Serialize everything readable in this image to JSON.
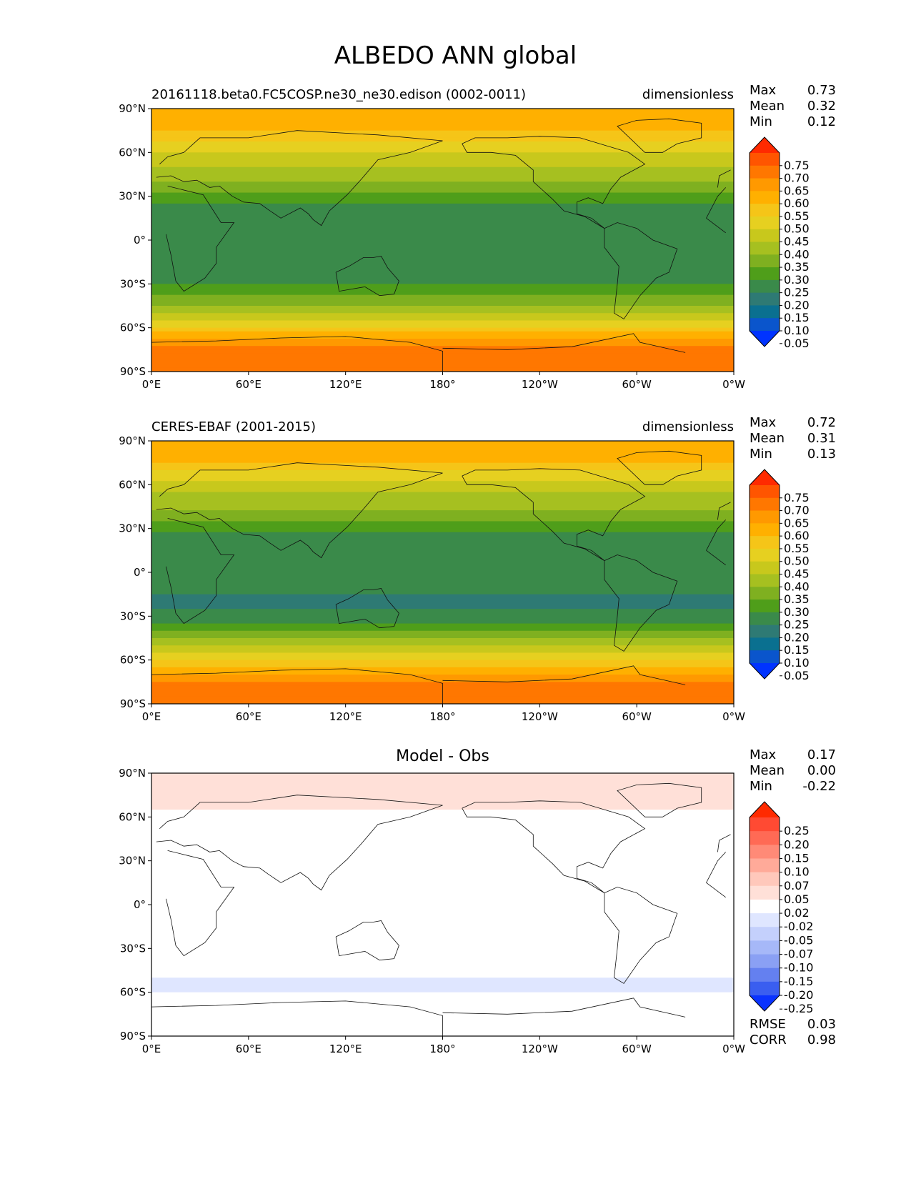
{
  "figure": {
    "title": "ALBEDO ANN global"
  },
  "panels": [
    {
      "left_label": "20161118.beta0.FC5COSP.ne30_ne30.edison (0002-0011)",
      "right_label": "dimensionless",
      "center_label": "",
      "stats": [
        {
          "label": "Max",
          "value": "0.73"
        },
        {
          "label": "Mean",
          "value": "0.32"
        },
        {
          "label": "Min",
          "value": "0.12"
        }
      ]
    },
    {
      "left_label": "CERES-EBAF (2001-2015)",
      "right_label": "dimensionless",
      "center_label": "",
      "stats": [
        {
          "label": "Max",
          "value": "0.72"
        },
        {
          "label": "Mean",
          "value": "0.31"
        },
        {
          "label": "Min",
          "value": "0.13"
        }
      ]
    },
    {
      "left_label": "",
      "right_label": "",
      "center_label": "Model - Obs",
      "stats": [
        {
          "label": "Max",
          "value": "0.17"
        },
        {
          "label": "Mean",
          "value": "0.00"
        },
        {
          "label": "Min",
          "value": "-0.22"
        }
      ],
      "extra_stats": [
        {
          "label": "RMSE",
          "value": "0.03"
        },
        {
          "label": "CORR",
          "value": "0.98"
        }
      ]
    }
  ],
  "chart_data": [
    {
      "type": "heatmap",
      "title": "20161118.beta0.FC5COSP.ne30_ne30.edison (0002-0011)",
      "units": "dimensionless",
      "x_ticks": [
        "0°E",
        "60°E",
        "120°E",
        "180°",
        "120°W",
        "60°W",
        "0°W"
      ],
      "y_ticks": [
        "90°N",
        "60°N",
        "30°N",
        "0°",
        "30°S",
        "60°S",
        "90°S"
      ],
      "xlim": [
        0,
        360
      ],
      "ylim": [
        -90,
        90
      ],
      "colorbar_levels": [
        "0.75",
        "0.70",
        "0.65",
        "0.60",
        "0.55",
        "0.50",
        "0.45",
        "0.40",
        "0.35",
        "0.30",
        "0.25",
        "0.20",
        "0.15",
        "0.10",
        "0.05"
      ],
      "colorbar_colors": [
        "#ff2a00",
        "#ff5500",
        "#ff7700",
        "#ff9900",
        "#ffb000",
        "#f5c518",
        "#e6d020",
        "#c8c81c",
        "#a6c020",
        "#7fb020",
        "#4f9e1a",
        "#3a8a4a",
        "#2e7a74",
        "#0a7090",
        "#0a55cc",
        "#0033ff"
      ],
      "zonal_profile": {
        "lat": [
          90,
          75,
          65,
          55,
          45,
          35,
          20,
          5,
          -5,
          -20,
          -35,
          -45,
          -55,
          -65,
          -75,
          -90
        ],
        "value": [
          0.6,
          0.56,
          0.47,
          0.42,
          0.38,
          0.32,
          0.22,
          0.22,
          0.25,
          0.2,
          0.27,
          0.36,
          0.45,
          0.58,
          0.66,
          0.7
        ]
      }
    },
    {
      "type": "heatmap",
      "title": "CERES-EBAF (2001-2015)",
      "units": "dimensionless",
      "x_ticks": [
        "0°E",
        "60°E",
        "120°E",
        "180°",
        "120°W",
        "60°W",
        "0°W"
      ],
      "y_ticks": [
        "90°N",
        "60°N",
        "30°N",
        "0°",
        "30°S",
        "60°S",
        "90°S"
      ],
      "xlim": [
        0,
        360
      ],
      "ylim": [
        -90,
        90
      ],
      "colorbar_levels": [
        "0.75",
        "0.70",
        "0.65",
        "0.60",
        "0.55",
        "0.50",
        "0.45",
        "0.40",
        "0.35",
        "0.30",
        "0.25",
        "0.20",
        "0.15",
        "0.10",
        "0.05"
      ],
      "colorbar_colors": [
        "#ff2a00",
        "#ff5500",
        "#ff7700",
        "#ff9900",
        "#ffb000",
        "#f5c518",
        "#e6d020",
        "#c8c81c",
        "#a6c020",
        "#7fb020",
        "#4f9e1a",
        "#3a8a4a",
        "#2e7a74",
        "#0a7090",
        "#0a55cc",
        "#0033ff"
      ],
      "zonal_profile": {
        "lat": [
          90,
          75,
          65,
          55,
          45,
          35,
          20,
          5,
          -5,
          -20,
          -35,
          -45,
          -55,
          -65,
          -75,
          -90
        ],
        "value": [
          0.58,
          0.55,
          0.46,
          0.4,
          0.36,
          0.3,
          0.21,
          0.22,
          0.23,
          0.18,
          0.25,
          0.34,
          0.44,
          0.56,
          0.66,
          0.68
        ]
      }
    },
    {
      "type": "heatmap",
      "title": "Model - Obs",
      "x_ticks": [
        "0°E",
        "60°E",
        "120°E",
        "180°",
        "120°W",
        "60°W",
        "0°W"
      ],
      "y_ticks": [
        "90°N",
        "60°N",
        "30°N",
        "0°",
        "30°S",
        "60°S",
        "90°S"
      ],
      "xlim": [
        0,
        360
      ],
      "ylim": [
        -90,
        90
      ],
      "colorbar_levels": [
        "0.25",
        "0.20",
        "0.15",
        "0.10",
        "0.07",
        "0.05",
        "0.02",
        "-0.02",
        "-0.05",
        "-0.07",
        "-0.10",
        "-0.15",
        "-0.20",
        "-0.25"
      ],
      "colorbar_colors": [
        "#ff2a00",
        "#ff4a33",
        "#ff6a55",
        "#ff8a77",
        "#ffaa99",
        "#ffc8bb",
        "#ffe0d8",
        "#ffffff",
        "#dfe6ff",
        "#c4d0fc",
        "#a6b8f8",
        "#8aa0f4",
        "#6480f0",
        "#3a5ef0",
        "#0a33ff"
      ],
      "zonal_profile": {
        "lat": [
          90,
          75,
          65,
          55,
          45,
          35,
          20,
          5,
          -5,
          -20,
          -35,
          -45,
          -55,
          -65,
          -75,
          -90
        ],
        "value": [
          0.03,
          0.04,
          0.02,
          0.01,
          0.0,
          0.0,
          0.01,
          0.0,
          0.0,
          0.0,
          0.02,
          0.0,
          -0.04,
          0.01,
          0.0,
          0.01
        ]
      }
    }
  ]
}
